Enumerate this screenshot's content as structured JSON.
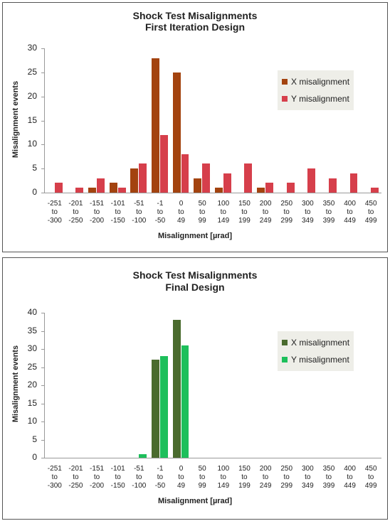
{
  "chart_data": [
    {
      "type": "bar",
      "title": "Shock Test Misalignments",
      "subtitle": "First Iteration Design",
      "x_label": "Misalignment [µrad]",
      "y_label": "Misalignment events",
      "categories": [
        "-251 to -300",
        "-201 to -250",
        "-151 to -200",
        "-101 to -150",
        "-51 to -100",
        "-1 to -50",
        "0 to 49",
        "50 to 99",
        "100 to 149",
        "150 to 199",
        "200 to 249",
        "250 to 299",
        "300 to 349",
        "350 to 399",
        "400 to 449",
        "450 to 499"
      ],
      "series": [
        {
          "name": "X misalignment",
          "color": "#a3430f",
          "values": [
            0,
            0,
            1,
            2,
            5,
            28,
            25,
            3,
            1,
            0,
            1,
            0,
            0,
            0,
            0,
            0
          ]
        },
        {
          "name": "Y misalignment",
          "color": "#d63f4b",
          "values": [
            2,
            1,
            3,
            1,
            6,
            12,
            8,
            6,
            4,
            6,
            2,
            2,
            5,
            3,
            4,
            1
          ]
        }
      ],
      "ylim": [
        0,
        30
      ],
      "yticks": [
        0,
        5,
        10,
        15,
        20,
        25,
        30
      ],
      "grid": false,
      "legend": "right"
    },
    {
      "type": "bar",
      "title": "Shock Test Misalignments",
      "subtitle": "Final Design",
      "x_label": "Misalignment [µrad]",
      "y_label": "Misalignment events",
      "categories": [
        "-251 to -300",
        "-201 to -250",
        "-151 to -200",
        "-101 to -150",
        "-51 to -100",
        "-1 to -50",
        "0 to 49",
        "50 to 99",
        "100 to 149",
        "150 to 199",
        "200 to 249",
        "250 to 299",
        "300 to 349",
        "350 to 399",
        "400 to 449",
        "450 to 499"
      ],
      "series": [
        {
          "name": "X misalignment",
          "color": "#4a6b2e",
          "values": [
            0,
            0,
            0,
            0,
            0,
            27,
            38,
            0,
            0,
            0,
            0,
            0,
            0,
            0,
            0,
            0
          ]
        },
        {
          "name": "Y misalignment",
          "color": "#1dbf5b",
          "values": [
            0,
            0,
            0,
            0,
            1,
            28,
            31,
            0,
            0,
            0,
            0,
            0,
            0,
            0,
            0,
            0
          ]
        }
      ],
      "ylim": [
        0,
        40
      ],
      "yticks": [
        0,
        5,
        10,
        15,
        20,
        25,
        30,
        35,
        40
      ],
      "grid": false,
      "legend": "right"
    }
  ]
}
